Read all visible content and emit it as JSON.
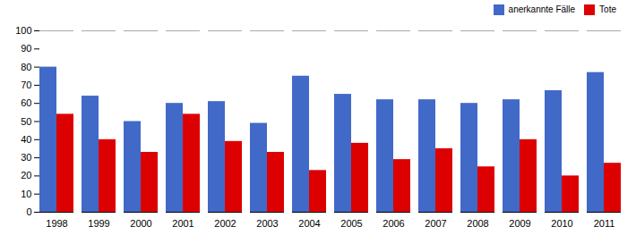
{
  "chart_data": {
    "type": "bar",
    "categories": [
      "1998",
      "1999",
      "2000",
      "2001",
      "2002",
      "2003",
      "2004",
      "2005",
      "2006",
      "2007",
      "2008",
      "2009",
      "2010",
      "2011"
    ],
    "series": [
      {
        "name": "anerkannte Fälle",
        "color": "#4169C8",
        "values": [
          80,
          64,
          50,
          60,
          61,
          49,
          75,
          65,
          62,
          62,
          60,
          62,
          67,
          77
        ]
      },
      {
        "name": "Tote",
        "color": "#DD0000",
        "values": [
          54,
          40,
          33,
          54,
          39,
          33,
          23,
          38,
          29,
          35,
          25,
          40,
          20,
          27
        ]
      }
    ],
    "ylim": [
      0,
      100
    ],
    "yticks": [
      0,
      10,
      20,
      30,
      40,
      50,
      60,
      70,
      80,
      90,
      100
    ],
    "grid": false,
    "legend": "upper right"
  }
}
